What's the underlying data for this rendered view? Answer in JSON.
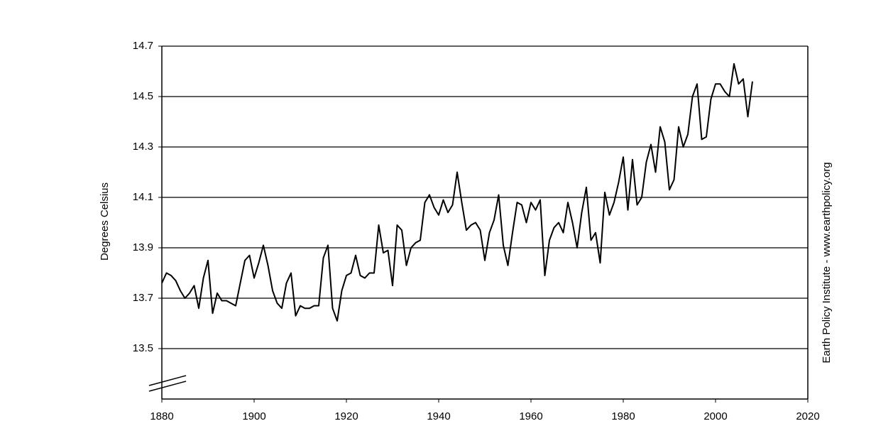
{
  "chart_data": {
    "type": "line",
    "y_label": "Degrees Celsius",
    "source": "Earth Policy Institute - www.earthpolicy.org",
    "xlim": [
      1880,
      2020
    ],
    "xticks": [
      1880,
      1900,
      1920,
      1940,
      1960,
      1980,
      2000,
      2020
    ],
    "ylim": [
      13.3,
      14.7
    ],
    "yticks": [
      13.5,
      13.7,
      13.9,
      14.1,
      14.3,
      14.5,
      14.7
    ],
    "grid": true,
    "x": [
      1880,
      1881,
      1882,
      1883,
      1884,
      1885,
      1886,
      1887,
      1888,
      1889,
      1890,
      1891,
      1892,
      1893,
      1894,
      1895,
      1896,
      1897,
      1898,
      1899,
      1900,
      1901,
      1902,
      1903,
      1904,
      1905,
      1906,
      1907,
      1908,
      1909,
      1910,
      1911,
      1912,
      1913,
      1914,
      1915,
      1916,
      1917,
      1918,
      1919,
      1920,
      1921,
      1922,
      1923,
      1924,
      1925,
      1926,
      1927,
      1928,
      1929,
      1930,
      1931,
      1932,
      1933,
      1934,
      1935,
      1936,
      1937,
      1938,
      1939,
      1940,
      1941,
      1942,
      1943,
      1944,
      1945,
      1946,
      1947,
      1948,
      1949,
      1950,
      1951,
      1952,
      1953,
      1954,
      1955,
      1956,
      1957,
      1958,
      1959,
      1960,
      1961,
      1962,
      1963,
      1964,
      1965,
      1966,
      1967,
      1968,
      1969,
      1970,
      1971,
      1972,
      1973,
      1974,
      1975,
      1976,
      1977,
      1978,
      1979,
      1980,
      1981,
      1982,
      1983,
      1984,
      1985,
      1986,
      1987,
      1988,
      1989,
      1990,
      1991,
      1992,
      1993,
      1994,
      1995,
      1996,
      1997,
      1998,
      1999,
      2000,
      2001,
      2002,
      2003,
      2004,
      2005,
      2006,
      2007,
      2008
    ],
    "series": [
      {
        "color": "#000000",
        "values": [
          13.76,
          13.8,
          13.79,
          13.77,
          13.73,
          13.7,
          13.72,
          13.75,
          13.66,
          13.78,
          13.85,
          13.64,
          13.72,
          13.69,
          13.69,
          13.68,
          13.67,
          13.76,
          13.85,
          13.87,
          13.78,
          13.84,
          13.91,
          13.83,
          13.73,
          13.68,
          13.66,
          13.76,
          13.8,
          13.63,
          13.67,
          13.66,
          13.66,
          13.67,
          13.67,
          13.86,
          13.91,
          13.66,
          13.61,
          13.73,
          13.79,
          13.8,
          13.87,
          13.79,
          13.78,
          13.8,
          13.8,
          13.99,
          13.88,
          13.89,
          13.75,
          13.99,
          13.97,
          13.83,
          13.9,
          13.92,
          13.93,
          14.08,
          14.11,
          14.06,
          14.03,
          14.09,
          14.04,
          14.07,
          14.2,
          14.08,
          13.97,
          13.99,
          14.0,
          13.97,
          13.85,
          13.96,
          14.01,
          14.11,
          13.91,
          13.83,
          13.96,
          14.08,
          14.07,
          14.0,
          14.08,
          14.05,
          14.09,
          13.79,
          13.93,
          13.98,
          14.0,
          13.96,
          14.08,
          14.0,
          13.9,
          14.04,
          14.14,
          13.93,
          13.96,
          13.84,
          14.12,
          14.03,
          14.08,
          14.16,
          14.26,
          14.05,
          14.25,
          14.07,
          14.1,
          14.24,
          14.31,
          14.2,
          14.38,
          14.32,
          14.13,
          14.17,
          14.38,
          14.3,
          14.35,
          14.5,
          14.55,
          14.33,
          14.34,
          14.49,
          14.55,
          14.55,
          14.52,
          14.5,
          14.63,
          14.55,
          14.57,
          14.42,
          14.56
        ]
      }
    ]
  }
}
